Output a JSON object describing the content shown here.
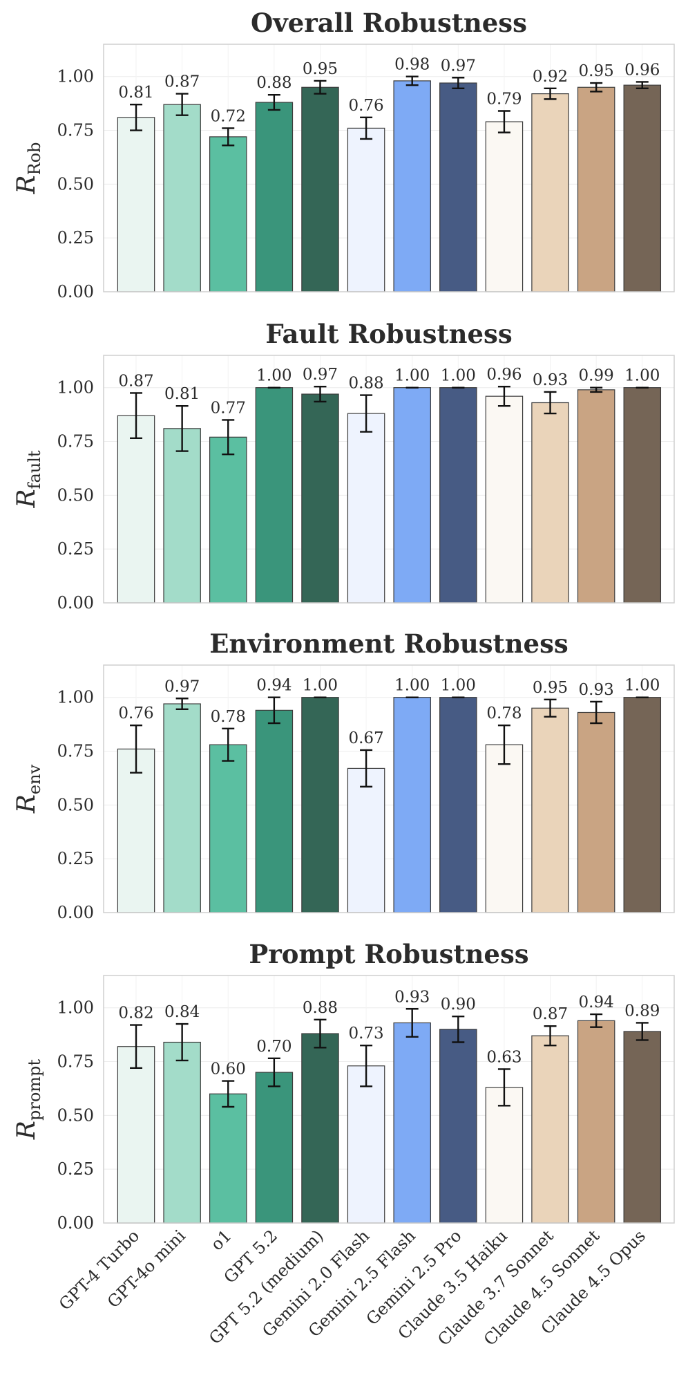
{
  "chart_data": {
    "type": "bar",
    "categories": [
      "GPT-4 Turbo",
      "GPT-4o mini",
      "o1",
      "GPT 5.2",
      "GPT 5.2 (medium)",
      "Gemini 2.0 Flash",
      "Gemini 2.5 Flash",
      "Gemini 2.5 Pro",
      "Claude 3.5 Haiku",
      "Claude 3.7 Sonnet",
      "Claude 4.5 Sonnet",
      "Claude 4.5 Opus"
    ],
    "colors": [
      "#eaf5f1",
      "#a3dcc9",
      "#5bbfa1",
      "#3a957b",
      "#346656",
      "#eef3fe",
      "#7eaaf5",
      "#475b84",
      "#fbf8f3",
      "#ead4ba",
      "#c9a483",
      "#756556"
    ],
    "ylim": [
      0,
      1.15
    ],
    "yticks": [
      0.0,
      0.25,
      0.5,
      0.75,
      1.0
    ],
    "ytick_labels": [
      "0.00",
      "0.25",
      "0.50",
      "0.75",
      "1.00"
    ],
    "grid": true,
    "panels": [
      {
        "title": "Overall Robustness",
        "ylabel": "R",
        "ylabel_sub": "Rob",
        "values": [
          0.81,
          0.87,
          0.72,
          0.88,
          0.95,
          0.76,
          0.98,
          0.97,
          0.79,
          0.92,
          0.95,
          0.96
        ],
        "value_labels": [
          "0.81",
          "0.87",
          "0.72",
          "0.88",
          "0.95",
          "0.76",
          "0.98",
          "0.97",
          "0.79",
          "0.92",
          "0.95",
          "0.96"
        ],
        "errors": [
          0.06,
          0.05,
          0.04,
          0.035,
          0.03,
          0.05,
          0.02,
          0.025,
          0.05,
          0.025,
          0.02,
          0.015
        ]
      },
      {
        "title": "Fault Robustness",
        "ylabel": "R",
        "ylabel_sub": "fault",
        "values": [
          0.87,
          0.81,
          0.77,
          1.0,
          0.97,
          0.88,
          1.0,
          1.0,
          0.96,
          0.93,
          0.99,
          1.0
        ],
        "value_labels": [
          "0.87",
          "0.81",
          "0.77",
          "1.00",
          "0.97",
          "0.88",
          "1.00",
          "1.00",
          "0.96",
          "0.93",
          "0.99",
          "1.00"
        ],
        "errors": [
          0.105,
          0.105,
          0.08,
          0.0,
          0.035,
          0.085,
          0.0,
          0.0,
          0.045,
          0.05,
          0.01,
          0.0
        ]
      },
      {
        "title": "Environment Robustness",
        "ylabel": "R",
        "ylabel_sub": "env",
        "values": [
          0.76,
          0.97,
          0.78,
          0.94,
          1.0,
          0.67,
          1.0,
          1.0,
          0.78,
          0.95,
          0.93,
          1.0
        ],
        "value_labels": [
          "0.76",
          "0.97",
          "0.78",
          "0.94",
          "1.00",
          "0.67",
          "1.00",
          "1.00",
          "0.78",
          "0.95",
          "0.93",
          "1.00"
        ],
        "errors": [
          0.11,
          0.025,
          0.075,
          0.06,
          0.0,
          0.085,
          0.0,
          0.0,
          0.09,
          0.04,
          0.05,
          0.0
        ]
      },
      {
        "title": "Prompt Robustness",
        "ylabel": "R",
        "ylabel_sub": "prompt",
        "values": [
          0.82,
          0.84,
          0.6,
          0.7,
          0.88,
          0.73,
          0.93,
          0.9,
          0.63,
          0.87,
          0.94,
          0.89
        ],
        "value_labels": [
          "0.82",
          "0.84",
          "0.60",
          "0.70",
          "0.88",
          "0.73",
          "0.93",
          "0.90",
          "0.63",
          "0.87",
          "0.94",
          "0.89"
        ],
        "errors": [
          0.1,
          0.085,
          0.06,
          0.065,
          0.065,
          0.095,
          0.065,
          0.06,
          0.085,
          0.045,
          0.03,
          0.04
        ]
      }
    ]
  }
}
